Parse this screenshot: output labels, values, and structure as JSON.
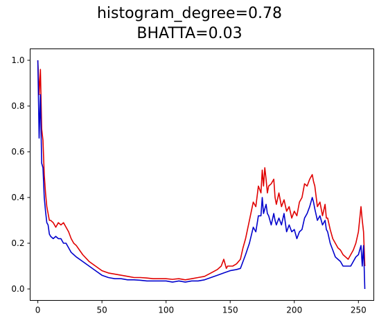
{
  "chart_data": {
    "type": "line",
    "title_lines": [
      "histogram_degree=0.78",
      "BHATTA=0.03"
    ],
    "xlabel": "",
    "ylabel": "",
    "xlim": [
      -6,
      262
    ],
    "ylim": [
      -0.05,
      1.05
    ],
    "x_ticks": [
      0,
      50,
      100,
      150,
      200,
      250
    ],
    "y_ticks": [
      0.0,
      0.2,
      0.4,
      0.6,
      0.8,
      1.0
    ],
    "y_tick_labels": [
      "0.0",
      "0.2",
      "0.4",
      "0.6",
      "0.8",
      "1.0"
    ],
    "grid": false,
    "series": [
      {
        "color": "#e00000",
        "x": [
          0,
          1,
          2,
          3,
          4,
          5,
          6,
          7,
          8,
          9,
          10,
          12,
          14,
          16,
          18,
          20,
          22,
          24,
          26,
          28,
          30,
          35,
          40,
          45,
          50,
          55,
          60,
          65,
          70,
          75,
          80,
          85,
          90,
          95,
          100,
          105,
          110,
          115,
          120,
          125,
          130,
          135,
          140,
          143,
          145,
          147,
          148,
          150,
          152,
          155,
          158,
          160,
          162,
          165,
          168,
          170,
          172,
          174,
          175,
          176,
          177,
          178,
          179,
          180,
          182,
          184,
          185,
          186,
          188,
          190,
          192,
          194,
          196,
          198,
          200,
          202,
          204,
          206,
          208,
          210,
          212,
          214,
          215,
          216,
          218,
          220,
          222,
          224,
          225,
          226,
          228,
          230,
          232,
          234,
          236,
          238,
          240,
          242,
          244,
          246,
          248,
          250,
          252,
          253,
          254,
          255
        ],
        "y": [
          1.0,
          0.85,
          0.96,
          0.7,
          0.65,
          0.5,
          0.42,
          0.36,
          0.33,
          0.3,
          0.3,
          0.29,
          0.27,
          0.29,
          0.28,
          0.29,
          0.27,
          0.25,
          0.22,
          0.2,
          0.19,
          0.15,
          0.12,
          0.1,
          0.08,
          0.07,
          0.065,
          0.06,
          0.055,
          0.05,
          0.05,
          0.048,
          0.045,
          0.045,
          0.045,
          0.042,
          0.045,
          0.04,
          0.045,
          0.05,
          0.055,
          0.07,
          0.085,
          0.1,
          0.13,
          0.09,
          0.1,
          0.1,
          0.1,
          0.11,
          0.13,
          0.18,
          0.22,
          0.3,
          0.38,
          0.36,
          0.45,
          0.42,
          0.52,
          0.45,
          0.53,
          0.48,
          0.42,
          0.45,
          0.46,
          0.48,
          0.4,
          0.37,
          0.42,
          0.36,
          0.39,
          0.34,
          0.36,
          0.31,
          0.34,
          0.32,
          0.38,
          0.4,
          0.46,
          0.45,
          0.48,
          0.5,
          0.47,
          0.45,
          0.36,
          0.38,
          0.32,
          0.37,
          0.31,
          0.31,
          0.26,
          0.22,
          0.2,
          0.18,
          0.17,
          0.15,
          0.14,
          0.13,
          0.15,
          0.17,
          0.2,
          0.25,
          0.36,
          0.3,
          0.25,
          0.1
        ]
      },
      {
        "color": "#0000cc",
        "x": [
          0,
          1,
          2,
          3,
          4,
          5,
          6,
          7,
          8,
          9,
          10,
          12,
          14,
          16,
          18,
          20,
          22,
          24,
          26,
          28,
          30,
          35,
          40,
          45,
          50,
          55,
          60,
          65,
          70,
          75,
          80,
          85,
          90,
          95,
          100,
          105,
          110,
          115,
          120,
          125,
          130,
          135,
          140,
          145,
          150,
          155,
          158,
          160,
          162,
          165,
          168,
          170,
          172,
          174,
          175,
          176,
          177,
          178,
          179,
          180,
          182,
          184,
          185,
          186,
          188,
          190,
          192,
          194,
          196,
          198,
          200,
          202,
          204,
          206,
          208,
          210,
          212,
          214,
          215,
          216,
          218,
          220,
          222,
          224,
          225,
          226,
          228,
          230,
          232,
          234,
          236,
          238,
          240,
          242,
          244,
          246,
          248,
          250,
          252,
          253,
          254,
          255
        ],
        "y": [
          1.0,
          0.66,
          0.85,
          0.55,
          0.53,
          0.4,
          0.34,
          0.29,
          0.28,
          0.24,
          0.23,
          0.22,
          0.23,
          0.22,
          0.22,
          0.2,
          0.2,
          0.18,
          0.16,
          0.15,
          0.14,
          0.12,
          0.1,
          0.08,
          0.06,
          0.05,
          0.045,
          0.045,
          0.04,
          0.04,
          0.038,
          0.035,
          0.035,
          0.035,
          0.035,
          0.03,
          0.035,
          0.03,
          0.035,
          0.035,
          0.04,
          0.05,
          0.06,
          0.07,
          0.08,
          0.085,
          0.09,
          0.12,
          0.15,
          0.2,
          0.27,
          0.25,
          0.32,
          0.32,
          0.4,
          0.33,
          0.35,
          0.37,
          0.33,
          0.32,
          0.28,
          0.33,
          0.3,
          0.28,
          0.31,
          0.28,
          0.33,
          0.25,
          0.28,
          0.25,
          0.26,
          0.22,
          0.25,
          0.26,
          0.31,
          0.33,
          0.36,
          0.4,
          0.38,
          0.35,
          0.3,
          0.32,
          0.28,
          0.3,
          0.26,
          0.25,
          0.2,
          0.17,
          0.14,
          0.13,
          0.12,
          0.1,
          0.1,
          0.1,
          0.1,
          0.12,
          0.14,
          0.15,
          0.19,
          0.1,
          0.19,
          0.0
        ]
      }
    ]
  }
}
